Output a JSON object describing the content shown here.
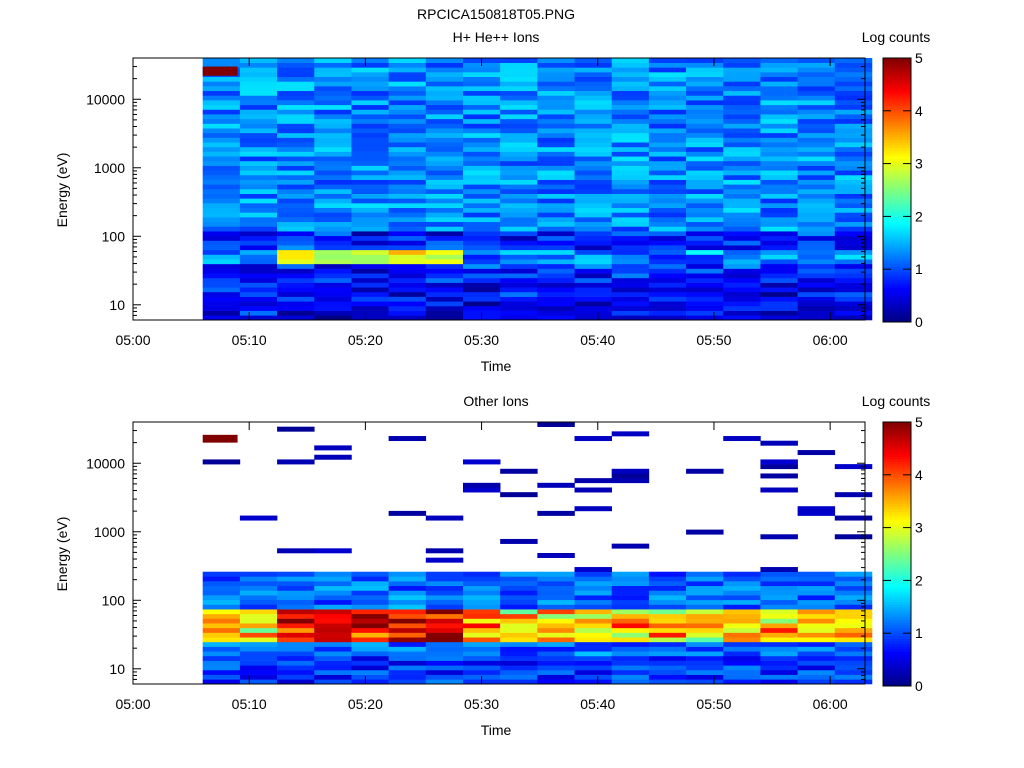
{
  "figure_title": "RPCICA150818T05.PNG",
  "colorbar_ticks": [
    "0",
    "1",
    "2",
    "3",
    "4",
    "5"
  ],
  "chart_data": [
    {
      "type": "heatmap",
      "title": "H+ He++ Ions",
      "xlabel": "Time",
      "ylabel": "Energy (eV)",
      "colorbar_label": "Log counts",
      "colorbar_range": [
        0,
        5
      ],
      "y_scale": "log",
      "ylim": [
        6,
        40000
      ],
      "xlim": [
        "05:00",
        "06:03"
      ],
      "x_ticks": [
        "05:00",
        "05:10",
        "05:20",
        "05:30",
        "05:40",
        "05:50",
        "06:00"
      ],
      "y_ticks": [
        "10",
        "100",
        "1000",
        "10000"
      ],
      "time_bins": [
        "05:06-05:09",
        "05:09-05:12",
        "05:12-05:16",
        "05:16-05:19",
        "05:19-05:22",
        "05:22-05:25",
        "05:25-05:28",
        "05:28-05:32",
        "05:32-05:35",
        "05:35-05:38",
        "05:38-05:41",
        "05:41-05:44",
        "05:44-05:48",
        "05:48-05:51",
        "05:51-05:54",
        "05:54-05:57",
        "05:57-06:00",
        "06:00-06:03"
      ],
      "features": {
        "peak_energy_eV": 50,
        "peak_interval": [
          "05:12",
          "05:28"
        ],
        "peak_log_counts": 3.5,
        "high_energy_block": {
          "time": "05:06-05:09",
          "energy_eV": [
            22000,
            30000
          ],
          "log_counts": 5.0
        },
        "background_log_counts": 1.3
      }
    },
    {
      "type": "heatmap",
      "title": "Other Ions",
      "xlabel": "Time",
      "ylabel": "Energy (eV)",
      "colorbar_label": "Log counts",
      "colorbar_range": [
        0,
        5
      ],
      "y_scale": "log",
      "ylim": [
        6,
        40000
      ],
      "xlim": [
        "05:00",
        "06:03"
      ],
      "x_ticks": [
        "05:00",
        "05:10",
        "05:20",
        "05:30",
        "05:40",
        "05:50",
        "06:00"
      ],
      "y_ticks": [
        "10",
        "100",
        "1000",
        "10000"
      ],
      "features": {
        "peak_energy_eV": 50,
        "peak_interval": [
          "05:12",
          "05:28"
        ],
        "peak_log_counts": 4.8,
        "high_energy_block": {
          "time": "05:06-05:09",
          "energy_eV": [
            20000,
            26000
          ],
          "log_counts": 5.0
        },
        "low_energy_background_log_counts": 0.7,
        "sparse_high_energy_log_counts": 0.1
      }
    }
  ]
}
